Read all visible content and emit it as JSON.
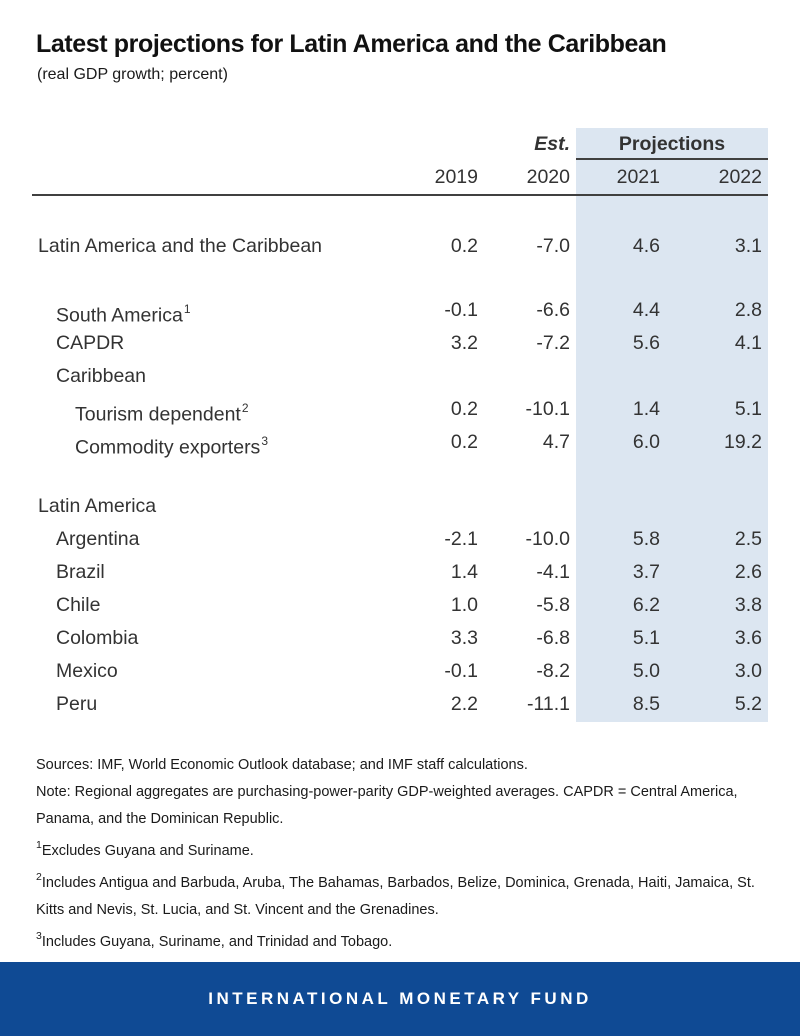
{
  "chart_data": {
    "type": "table",
    "title": "Latest projections for Latin America and the Caribbean",
    "subtitle": "(real GDP growth; percent)",
    "header": {
      "est_label": "Est.",
      "projections_label": "Projections"
    },
    "columns": [
      "2019",
      "2020",
      "2021",
      "2022"
    ],
    "rows": [
      {
        "label": "Latin America and the Caribbean",
        "sup": "",
        "indent": 0,
        "gap_before": false,
        "values": [
          "0.2",
          "-7.0",
          "4.6",
          "3.1"
        ]
      },
      {
        "label": "South America",
        "sup": "1",
        "indent": 1,
        "gap_before": true,
        "values": [
          "-0.1",
          "-6.6",
          "4.4",
          "2.8"
        ]
      },
      {
        "label": "CAPDR",
        "sup": "",
        "indent": 1,
        "gap_before": false,
        "values": [
          "3.2",
          "-7.2",
          "5.6",
          "4.1"
        ]
      },
      {
        "label": "Caribbean",
        "sup": "",
        "indent": 1,
        "gap_before": false,
        "values": [
          "",
          "",
          "",
          ""
        ]
      },
      {
        "label": "Tourism dependent",
        "sup": "2",
        "indent": 2,
        "gap_before": false,
        "values": [
          "0.2",
          "-10.1",
          "1.4",
          "5.1"
        ]
      },
      {
        "label": "Commodity exporters",
        "sup": "3",
        "indent": 2,
        "gap_before": false,
        "values": [
          "0.2",
          "4.7",
          "6.0",
          "19.2"
        ]
      },
      {
        "label": "Latin America",
        "sup": "",
        "indent": 0,
        "gap_before": true,
        "values": [
          "",
          "",
          "",
          ""
        ]
      },
      {
        "label": "Argentina",
        "sup": "",
        "indent": 1,
        "gap_before": false,
        "values": [
          "-2.1",
          "-10.0",
          "5.8",
          "2.5"
        ]
      },
      {
        "label": "Brazil",
        "sup": "",
        "indent": 1,
        "gap_before": false,
        "values": [
          "1.4",
          "-4.1",
          "3.7",
          "2.6"
        ]
      },
      {
        "label": "Chile",
        "sup": "",
        "indent": 1,
        "gap_before": false,
        "values": [
          "1.0",
          "-5.8",
          "6.2",
          "3.8"
        ]
      },
      {
        "label": "Colombia",
        "sup": "",
        "indent": 1,
        "gap_before": false,
        "values": [
          "3.3",
          "-6.8",
          "5.1",
          "3.6"
        ]
      },
      {
        "label": "Mexico",
        "sup": "",
        "indent": 1,
        "gap_before": false,
        "values": [
          "-0.1",
          "-8.2",
          "5.0",
          "3.0"
        ]
      },
      {
        "label": "Peru",
        "sup": "",
        "indent": 1,
        "gap_before": false,
        "values": [
          "2.2",
          "-11.1",
          "8.5",
          "5.2"
        ]
      }
    ]
  },
  "footnotes": [
    {
      "sup": "",
      "text": "Sources: IMF, World Economic Outlook database; and IMF staff calculations."
    },
    {
      "sup": "",
      "text": "Note: Regional aggregates are purchasing-power-parity GDP-weighted averages. CAPDR = Central America, Panama, and the Dominican Republic."
    },
    {
      "sup": "1",
      "text": "Excludes Guyana and Suriname."
    },
    {
      "sup": "2",
      "text": "Includes Antigua and Barbuda, Aruba, The Bahamas, Barbados, Belize, Dominica, Grenada, Haiti, Jamaica, St. Kitts and Nevis, St. Lucia, and St. Vincent and the Grenadines."
    },
    {
      "sup": "3",
      "text": "Includes Guyana, Suriname, and Trinidad and Tobago."
    }
  ],
  "footer": {
    "text": "INTERNATIONAL MONETARY FUND"
  },
  "colors": {
    "projection_shade": "#dce6f1",
    "rule": "#404040",
    "footer_blue": "#0f4a94",
    "text": "#333333"
  }
}
